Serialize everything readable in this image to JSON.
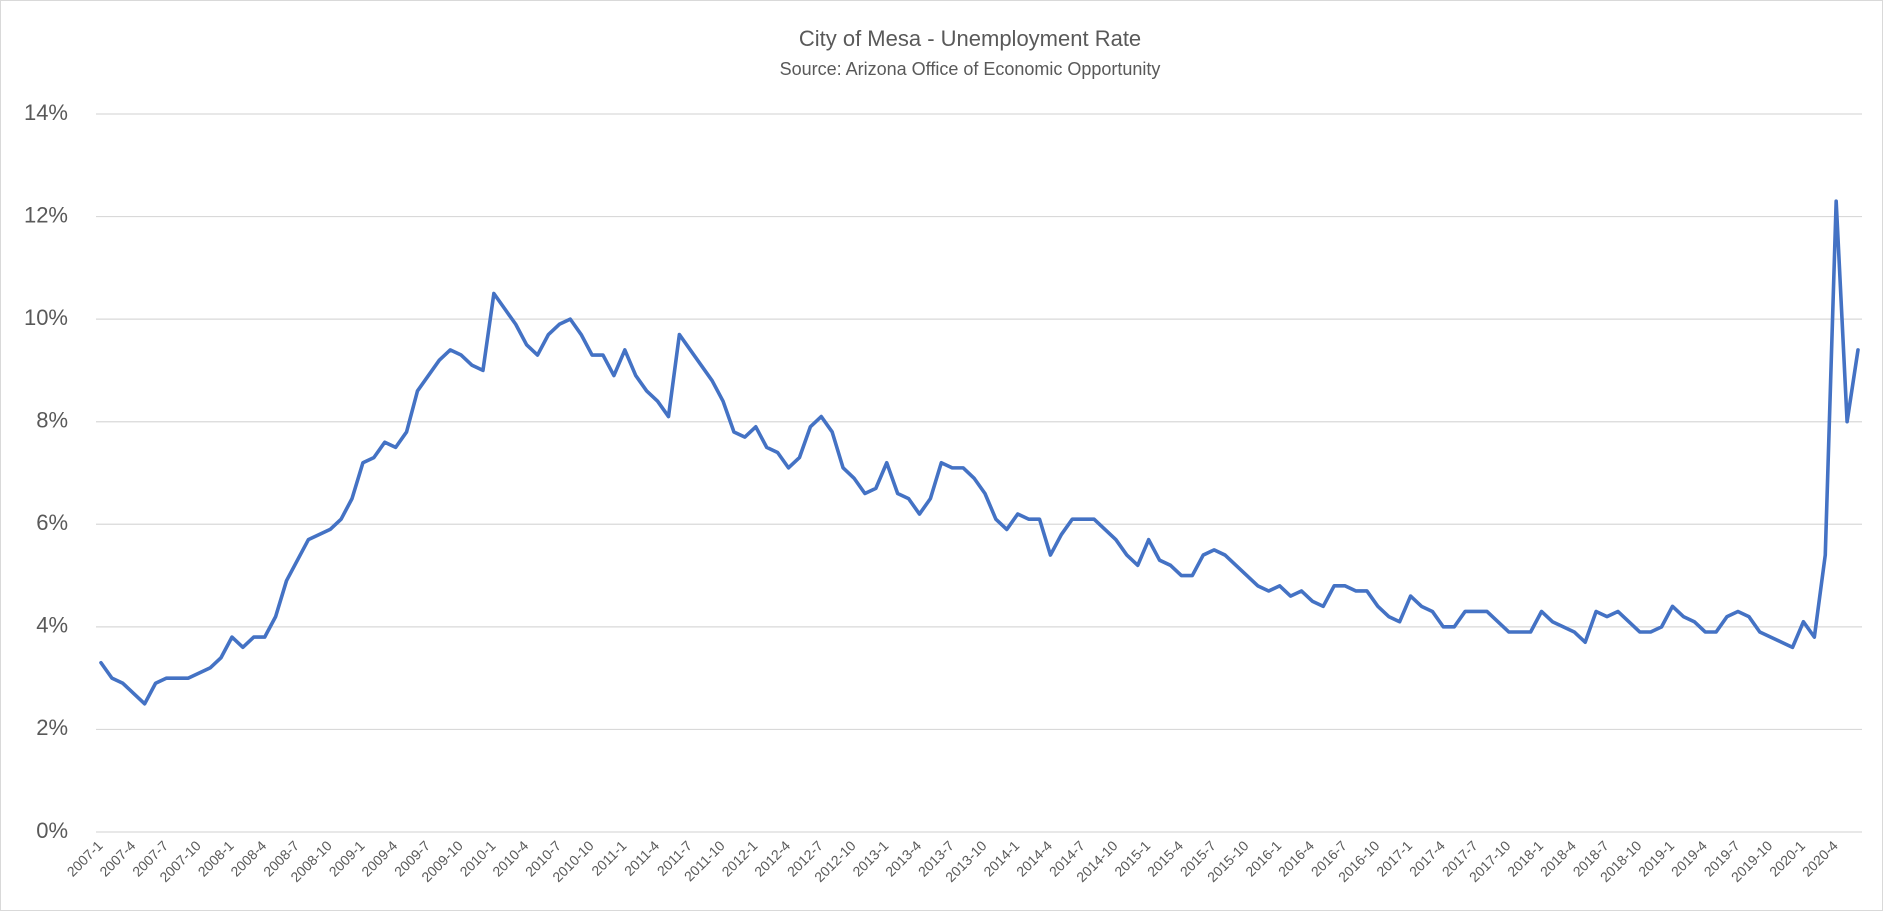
{
  "chart_data": {
    "type": "line",
    "title": "City of Mesa - Unemployment Rate",
    "subtitle": "Source: Arizona Office of Economic Opportunity",
    "categories": [
      "2007-1",
      null,
      null,
      "2007-4",
      null,
      null,
      "2007-7",
      null,
      null,
      "2007-10",
      null,
      null,
      "2008-1",
      null,
      null,
      "2008-4",
      null,
      null,
      "2008-7",
      null,
      null,
      "2008-10",
      null,
      null,
      "2009-1",
      null,
      null,
      "2009-4",
      null,
      null,
      "2009-7",
      null,
      null,
      "2009-10",
      null,
      null,
      "2010-1",
      null,
      null,
      "2010-4",
      null,
      null,
      "2010-7",
      null,
      null,
      "2010-10",
      null,
      null,
      "2011-1",
      null,
      null,
      "2011-4",
      null,
      null,
      "2011-7",
      null,
      null,
      "2011-10",
      null,
      null,
      "2012-1",
      null,
      null,
      "2012-4",
      null,
      null,
      "2012-7",
      null,
      null,
      "2012-10",
      null,
      null,
      "2013-1",
      null,
      null,
      "2013-4",
      null,
      null,
      "2013-7",
      null,
      null,
      "2013-10",
      null,
      null,
      "2014-1",
      null,
      null,
      "2014-4",
      null,
      null,
      "2014-7",
      null,
      null,
      "2014-10",
      null,
      null,
      "2015-1",
      null,
      null,
      "2015-4",
      null,
      null,
      "2015-7",
      null,
      null,
      "2015-10",
      null,
      null,
      "2016-1",
      null,
      null,
      "2016-4",
      null,
      null,
      "2016-7",
      null,
      null,
      "2016-10",
      null,
      null,
      "2017-1",
      null,
      null,
      "2017-4",
      null,
      null,
      "2017-7",
      null,
      null,
      "2017-10",
      null,
      null,
      "2018-1",
      null,
      null,
      "2018-4",
      null,
      null,
      "2018-7",
      null,
      null,
      "2018-10",
      null,
      null,
      "2019-1",
      null,
      null,
      "2019-4",
      null,
      null,
      "2019-7",
      null,
      null,
      "2019-10",
      null,
      null,
      "2020-1",
      null,
      null,
      "2020-4",
      null,
      null
    ],
    "series": [
      {
        "color": "#4472c4",
        "values": [
          3.3,
          3.0,
          2.9,
          2.7,
          2.5,
          2.9,
          3.0,
          3.0,
          3.0,
          3.1,
          3.2,
          3.4,
          3.8,
          3.6,
          3.8,
          3.8,
          4.2,
          4.9,
          5.3,
          5.7,
          5.8,
          5.9,
          6.1,
          6.5,
          7.2,
          7.3,
          7.6,
          7.5,
          7.8,
          8.6,
          8.9,
          9.2,
          9.4,
          9.3,
          9.1,
          9.0,
          10.5,
          10.2,
          9.9,
          9.5,
          9.3,
          9.7,
          9.9,
          10.0,
          9.7,
          9.3,
          9.3,
          8.9,
          9.4,
          8.9,
          8.6,
          8.4,
          8.1,
          9.7,
          9.4,
          9.1,
          8.8,
          8.4,
          7.8,
          7.7,
          7.9,
          7.5,
          7.4,
          7.1,
          7.3,
          7.9,
          8.1,
          7.8,
          7.1,
          6.9,
          6.6,
          6.7,
          7.2,
          6.6,
          6.5,
          6.2,
          6.5,
          7.2,
          7.1,
          7.1,
          6.9,
          6.6,
          6.1,
          5.9,
          6.2,
          6.1,
          6.1,
          5.4,
          5.8,
          6.1,
          6.1,
          6.1,
          5.9,
          5.7,
          5.4,
          5.2,
          5.7,
          5.3,
          5.2,
          5.0,
          5.0,
          5.4,
          5.5,
          5.4,
          5.2,
          5.0,
          4.8,
          4.7,
          4.8,
          4.6,
          4.7,
          4.5,
          4.4,
          4.8,
          4.8,
          4.7,
          4.7,
          4.4,
          4.2,
          4.1,
          4.6,
          4.4,
          4.3,
          4.0,
          4.0,
          4.3,
          4.3,
          4.3,
          4.1,
          3.9,
          3.9,
          3.9,
          4.3,
          4.1,
          4.0,
          3.9,
          3.7,
          4.3,
          4.2,
          4.3,
          4.1,
          3.9,
          3.9,
          4.0,
          4.4,
          4.2,
          4.1,
          3.9,
          3.9,
          4.2,
          4.3,
          4.2,
          3.9,
          3.8,
          3.7,
          3.6,
          4.1,
          3.8,
          5.4,
          12.3,
          8.0,
          9.4
        ]
      }
    ],
    "ylim": [
      0,
      14
    ],
    "yticks": [
      {
        "value": 0,
        "label": "0%"
      },
      {
        "value": 2,
        "label": "2%"
      },
      {
        "value": 4,
        "label": "4%"
      },
      {
        "value": 6,
        "label": "6%"
      },
      {
        "value": 8,
        "label": "8%"
      },
      {
        "value": 10,
        "label": "10%"
      },
      {
        "value": 12,
        "label": "12%"
      },
      {
        "value": 14,
        "label": "14%"
      }
    ],
    "grid": true
  }
}
